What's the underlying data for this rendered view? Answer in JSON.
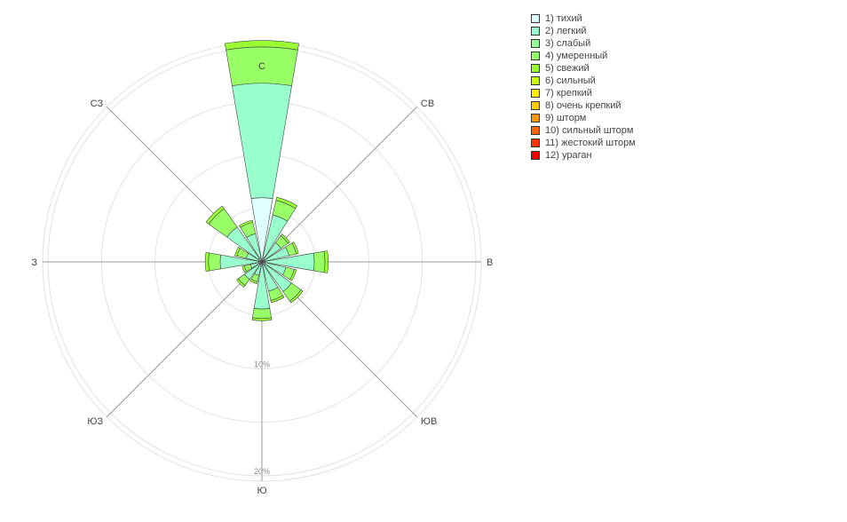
{
  "chart_data": {
    "type": "windrose",
    "title": "",
    "radial_ticks": [
      {
        "value": 10,
        "label": "10%"
      },
      {
        "value": 20,
        "label": "20%"
      }
    ],
    "radial_max": 20.5,
    "ring_values": [
      5,
      10,
      15,
      20
    ],
    "axis_labels": [
      {
        "label": "С",
        "angle": 0
      },
      {
        "label": "СВ",
        "angle": 45
      },
      {
        "label": "В",
        "angle": 90
      },
      {
        "label": "ЮВ",
        "angle": 135
      },
      {
        "label": "Ю",
        "angle": 180
      },
      {
        "label": "ЮЗ",
        "angle": 225
      },
      {
        "label": "З",
        "angle": 270
      },
      {
        "label": "СЗ",
        "angle": 315
      }
    ],
    "directions": [
      0,
      22.5,
      45,
      67.5,
      90,
      112.5,
      135,
      157.5,
      180,
      202.5,
      225,
      247.5,
      270,
      292.5,
      315,
      337.5
    ],
    "series": [
      {
        "name": "1) тихий",
        "color": "#e0ffff",
        "values": [
          6.0,
          0.4,
          0.3,
          0.3,
          0.3,
          0.3,
          0.4,
          0.3,
          0.4,
          0.3,
          0.3,
          0.3,
          0.3,
          0.3,
          0.4,
          0.4
        ]
      },
      {
        "name": "2) легкий",
        "color": "#99ffcc",
        "values": [
          10.7,
          4.1,
          1.9,
          2.3,
          4.6,
          2.0,
          3.0,
          2.5,
          4.0,
          1.0,
          1.7,
          0.8,
          3.6,
          1.2,
          3.6,
          2.3
        ]
      },
      {
        "name": "3) слабый",
        "color": "#99ff99",
        "values": [
          0.0,
          0.0,
          0.0,
          0.0,
          0.0,
          0.0,
          0.0,
          0.0,
          0.0,
          0.0,
          0.0,
          0.0,
          0.0,
          0.0,
          0.0,
          0.0
        ]
      },
      {
        "name": "4) умеренный",
        "color": "#99ff66",
        "values": [
          3.4,
          1.4,
          0.8,
          0.7,
          1.0,
          0.8,
          1.1,
          0.9,
          0.9,
          0.6,
          0.7,
          0.6,
          1.1,
          0.9,
          2.1,
          1.1
        ]
      },
      {
        "name": "5) свежий",
        "color": "#99ff33",
        "values": [
          0.6,
          0.3,
          0.2,
          0.2,
          0.3,
          0.2,
          0.2,
          0.2,
          0.2,
          0.2,
          0.2,
          0.2,
          0.3,
          0.2,
          0.3,
          0.2
        ]
      },
      {
        "name": "6) сильный",
        "color": "#ccff00",
        "values": [
          0,
          0,
          0,
          0,
          0,
          0,
          0,
          0,
          0,
          0,
          0,
          0,
          0,
          0,
          0,
          0
        ]
      },
      {
        "name": "7) крепкий",
        "color": "#ffee00",
        "values": [
          0,
          0,
          0,
          0,
          0,
          0,
          0,
          0,
          0,
          0,
          0,
          0,
          0,
          0,
          0,
          0
        ]
      },
      {
        "name": "8) очень крепкий",
        "color": "#ffcc00",
        "values": [
          0,
          0,
          0,
          0,
          0,
          0,
          0,
          0,
          0,
          0,
          0,
          0,
          0,
          0,
          0,
          0
        ]
      },
      {
        "name": "9) шторм",
        "color": "#ff9900",
        "values": [
          0,
          0,
          0,
          0,
          0,
          0,
          0,
          0,
          0,
          0,
          0,
          0,
          0,
          0,
          0,
          0
        ]
      },
      {
        "name": "10) сильный шторм",
        "color": "#ff6600",
        "values": [
          0,
          0,
          0,
          0,
          0,
          0,
          0,
          0,
          0,
          0,
          0,
          0,
          0,
          0,
          0,
          0
        ]
      },
      {
        "name": "11) жестокий шторм",
        "color": "#ff3300",
        "values": [
          0,
          0,
          0,
          0,
          0,
          0,
          0,
          0,
          0,
          0,
          0,
          0,
          0,
          0,
          0,
          0
        ]
      },
      {
        "name": "12) ураган",
        "color": "#ee0000",
        "values": [
          0,
          0,
          0,
          0,
          0,
          0,
          0,
          0,
          0,
          0,
          0,
          0,
          0,
          0,
          0,
          0
        ]
      }
    ],
    "grid": true,
    "legend_position": "top-right"
  }
}
